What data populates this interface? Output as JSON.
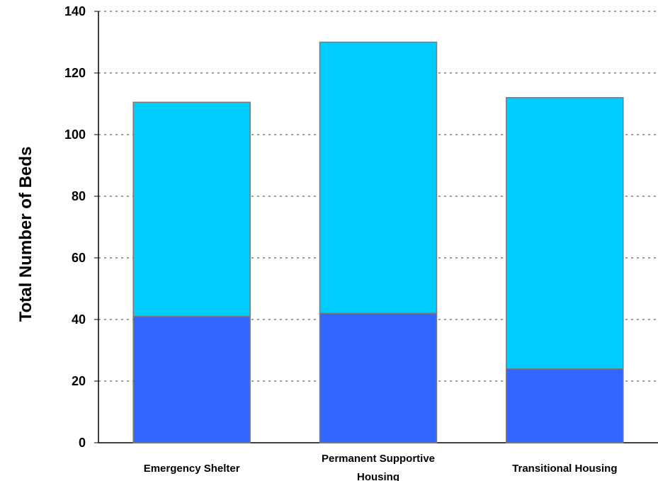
{
  "chart_data": {
    "type": "bar",
    "stacked": true,
    "title": "",
    "xlabel": "",
    "ylabel": "Total Number of Beds",
    "ylim": [
      0,
      140
    ],
    "yticks": [
      0,
      20,
      40,
      60,
      80,
      100,
      120,
      140
    ],
    "grid": true,
    "legend": "none",
    "categories": [
      [
        "Emergency Shelter"
      ],
      [
        "Permanent Supportive",
        "Housing"
      ],
      [
        "Transitional Housing"
      ]
    ],
    "series": [
      {
        "values": [
          41,
          42,
          24
        ],
        "color": "#3366ff"
      },
      {
        "values": [
          69.5,
          88,
          88
        ],
        "color": "#00ccff"
      }
    ]
  }
}
